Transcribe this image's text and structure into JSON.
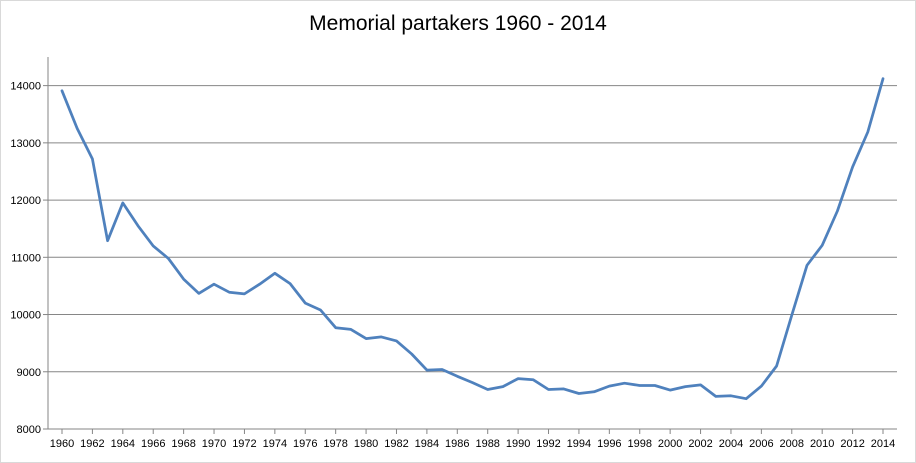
{
  "chart_data": {
    "type": "line",
    "title": "Memorial partakers 1960  - 2014",
    "xlabel": "",
    "ylabel": "",
    "ylim": [
      8000,
      14500
    ],
    "xlim": [
      1960,
      2014
    ],
    "yticks": [
      "8000",
      "9000",
      "10000",
      "11000",
      "12000",
      "13000",
      "14000"
    ],
    "xticks": [
      "1960",
      "1962",
      "1964",
      "1966",
      "1968",
      "1970",
      "1972",
      "1974",
      "1976",
      "1978",
      "1980",
      "1982",
      "1984",
      "1986",
      "1988",
      "1990",
      "1992",
      "1994",
      "1996",
      "1998",
      "2000",
      "2002",
      "2004",
      "2006",
      "2008",
      "2010",
      "2012",
      "2014"
    ],
    "grid": true,
    "legend": "none",
    "line_color": "#4f81bd",
    "grid_color": "#868686",
    "series": [
      {
        "x": [
          1960,
          1961,
          1962,
          1963,
          1964,
          1965,
          1966,
          1967,
          1968,
          1969,
          1970,
          1971,
          1972,
          1973,
          1974,
          1975,
          1976,
          1977,
          1978,
          1979,
          1980,
          1981,
          1982,
          1983,
          1984,
          1985,
          1986,
          1987,
          1988,
          1989,
          1990,
          1991,
          1992,
          1993,
          1994,
          1995,
          1996,
          1997,
          1998,
          1999,
          2000,
          2001,
          2002,
          2003,
          2004,
          2005,
          2006,
          2007,
          2008,
          2009,
          2010,
          2011,
          2012,
          2013,
          2014
        ],
        "values": [
          13910,
          13250,
          12720,
          11290,
          11950,
          11550,
          11200,
          10980,
          10620,
          10370,
          10530,
          10390,
          10360,
          10530,
          10720,
          10540,
          10200,
          10080,
          9770,
          9740,
          9580,
          9610,
          9540,
          9310,
          9030,
          9040,
          8920,
          8810,
          8690,
          8740,
          8880,
          8860,
          8690,
          8700,
          8620,
          8650,
          8750,
          8800,
          8760,
          8760,
          8680,
          8740,
          8770,
          8570,
          8580,
          8530,
          8750,
          9100,
          9990,
          10860,
          11210,
          11810,
          12580,
          13190,
          14120
        ]
      }
    ]
  }
}
